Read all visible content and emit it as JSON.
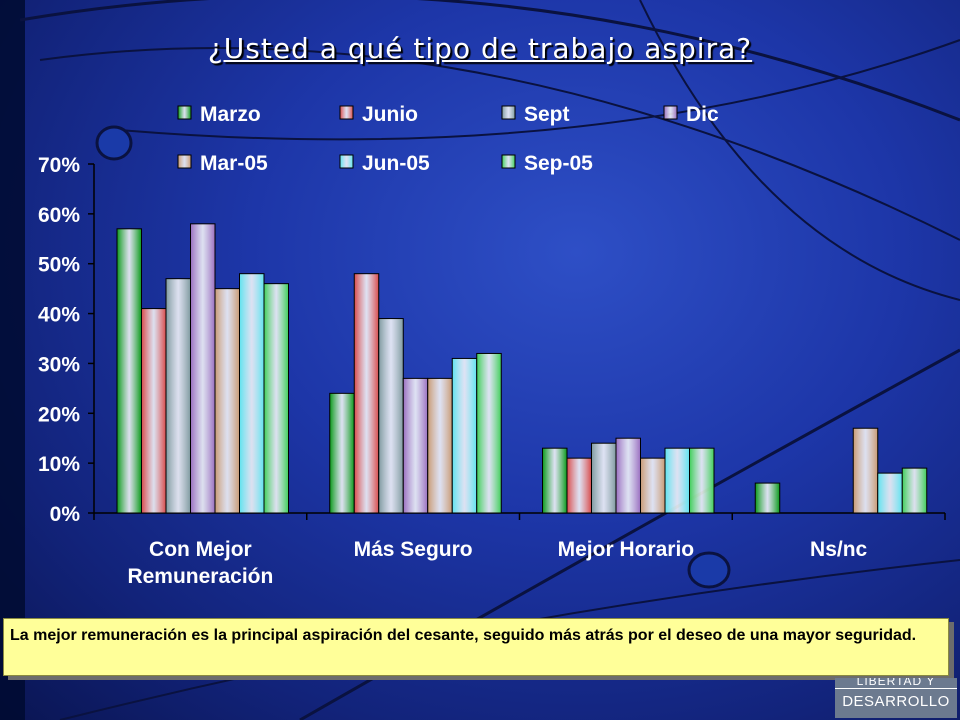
{
  "title": "¿Usted a qué tipo de trabajo aspira?",
  "caption": "La mejor remuneración es la principal aspiración del cesante, seguido más atrás por el deseo de una mayor seguridad.",
  "logo": {
    "top": "LIBERTAD Y",
    "bottom": "DESARROLLO"
  },
  "chart_data": {
    "type": "bar",
    "title": "¿Usted a qué tipo de trabajo aspira?",
    "categories": [
      [
        "Con Mejor",
        "Remuneración"
      ],
      [
        "Más Seguro"
      ],
      [
        "Mejor Horario"
      ],
      [
        "Ns/nc"
      ]
    ],
    "ylim": [
      0,
      0.7
    ],
    "yticks": [
      "0%",
      "10%",
      "20%",
      "30%",
      "40%",
      "50%",
      "60%",
      "70%"
    ],
    "legend_position": "top",
    "grid": false,
    "series": [
      {
        "name": "Marzo",
        "color": "#0a9a1a",
        "values": [
          0.57,
          0.24,
          0.13,
          0.06
        ]
      },
      {
        "name": "Junio",
        "color": "#d84b4b",
        "values": [
          0.41,
          0.48,
          0.11,
          null
        ]
      },
      {
        "name": "Sept",
        "color": "#7f9aa0",
        "values": [
          0.47,
          0.39,
          0.14,
          null
        ]
      },
      {
        "name": "Dic",
        "color": "#9a6fc0",
        "values": [
          0.58,
          0.27,
          0.15,
          null
        ]
      },
      {
        "name": "Mar-05",
        "color": "#c99a74",
        "values": [
          0.45,
          0.27,
          0.11,
          0.17
        ]
      },
      {
        "name": "Jun-05",
        "color": "#5fe3ef",
        "values": [
          0.48,
          0.31,
          0.13,
          0.08
        ]
      },
      {
        "name": "Sep-05",
        "color": "#3fcf5a",
        "values": [
          0.46,
          0.32,
          0.13,
          0.09
        ]
      }
    ]
  }
}
